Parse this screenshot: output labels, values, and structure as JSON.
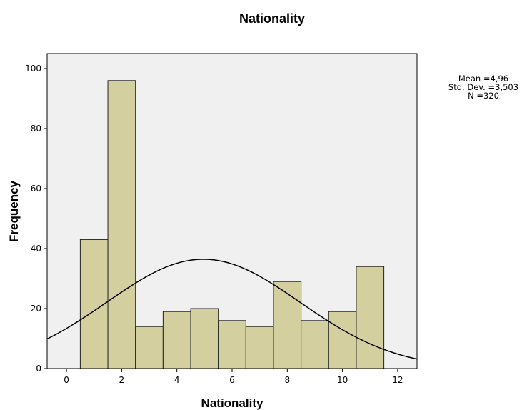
{
  "chart_data": {
    "type": "bar",
    "title": "Nationality",
    "xlabel": "Nationality",
    "ylabel": "Frequency",
    "xlim": [
      -0.7,
      12.7
    ],
    "ylim": [
      0,
      105
    ],
    "x_ticks": [
      "0",
      "2",
      "4",
      "6",
      "8",
      "10",
      "12"
    ],
    "y_ticks": [
      "0",
      "20",
      "40",
      "60",
      "80",
      "100"
    ],
    "bin_width": 1,
    "bins": [
      {
        "x": 1,
        "count": 43
      },
      {
        "x": 2,
        "count": 96
      },
      {
        "x": 3,
        "count": 14
      },
      {
        "x": 4,
        "count": 19
      },
      {
        "x": 5,
        "count": 20
      },
      {
        "x": 6,
        "count": 16
      },
      {
        "x": 7,
        "count": 14
      },
      {
        "x": 8,
        "count": 29
      },
      {
        "x": 9,
        "count": 16
      },
      {
        "x": 10,
        "count": 19
      },
      {
        "x": 11,
        "count": 34
      }
    ],
    "normal_curve": true,
    "grid": false,
    "stats": [
      "Mean =4,96",
      "Std. Dev. =3,503",
      "N =320"
    ],
    "colors": {
      "bar_fill": "#d3cf9e",
      "bar_stroke": "#222222",
      "plot_bg": "#f0f0f0",
      "curve": "#000000"
    }
  }
}
